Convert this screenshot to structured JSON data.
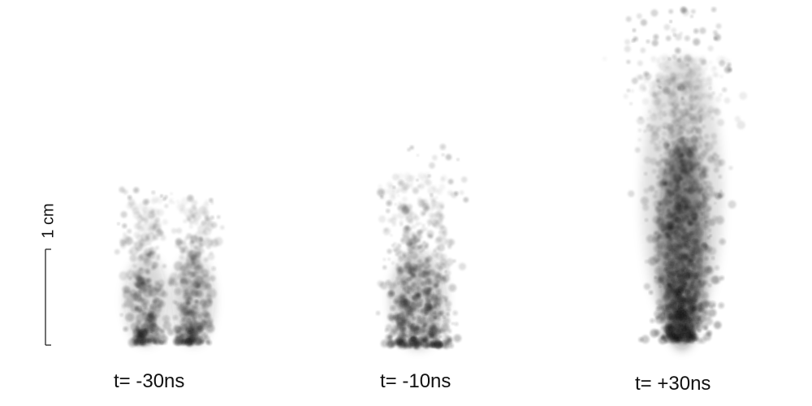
{
  "panels": [
    {
      "label": "t= -30ns"
    },
    {
      "label": "t= -10ns"
    },
    {
      "label": "t= +30ns"
    }
  ],
  "scale_bar": {
    "label": "1 cm"
  },
  "colors": {
    "background": "#ffffff",
    "particles": "#1a1a1a",
    "text": "#111111"
  }
}
